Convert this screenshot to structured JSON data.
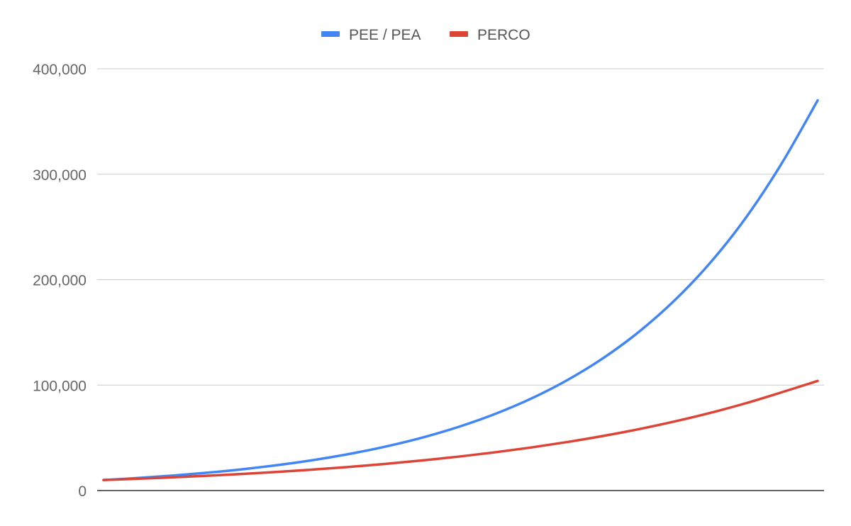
{
  "chart_data": {
    "type": "line",
    "title": "",
    "xlabel": "",
    "ylabel": "",
    "ylim": [
      0,
      400000
    ],
    "yticks": [
      0,
      100000,
      200000,
      300000,
      400000
    ],
    "ytick_labels": [
      "0",
      "100,000",
      "200,000",
      "300,000",
      "400,000"
    ],
    "grid": true,
    "legend_position": "top",
    "x": [
      0,
      2,
      4,
      6,
      8,
      10,
      12,
      14,
      16,
      18,
      20,
      22,
      24,
      26,
      28,
      30,
      32,
      34,
      36,
      38,
      40
    ],
    "series": [
      {
        "name": "PEE / PEA",
        "color": "#4285f4",
        "values": [
          10000,
          11983,
          14359,
          17205,
          20616,
          24702,
          29598,
          35466,
          42496,
          50920,
          61014,
          73108,
          87599,
          104963,
          125769,
          150701,
          180573,
          216367,
          259256,
          310647,
          370000
        ]
      },
      {
        "name": "PERCO",
        "color": "#db4437",
        "values": [
          10000,
          11247,
          12650,
          14227,
          16002,
          17997,
          20242,
          22766,
          25605,
          28799,
          32390,
          36430,
          40973,
          46083,
          51830,
          58294,
          65564,
          73740,
          82937,
          93280,
          104000
        ]
      }
    ]
  }
}
